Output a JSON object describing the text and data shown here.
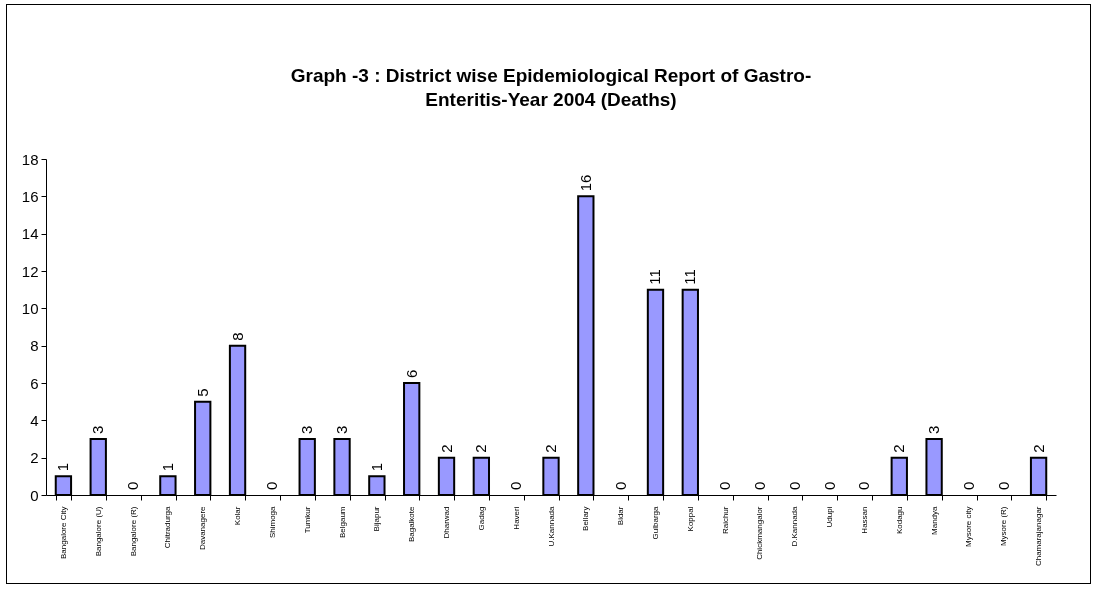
{
  "chart_data": {
    "type": "bar",
    "title": "Graph -3 : District wise  Epidemiological Report of Gastro-Enteritis-Year 2004 (Deaths)",
    "categories": [
      "Bangalore City",
      "Bangalore (U)",
      "Bangalore (R)",
      "Chitradurga",
      "Davanagere",
      "Kolar",
      "Shimoga",
      "Tumkur",
      "Belgaum",
      "Bijapur",
      "Bagalkote",
      "Dharwad",
      "Gadag",
      "Haveri",
      "U.Kannada",
      "Bellary",
      "Bidar",
      "Gulbarga",
      "Koppal",
      "Raichur",
      "Chickmangalor",
      "D.Kannada",
      "Udupi",
      "Hassan",
      "Kodagu",
      "Mandya",
      "Mysore city",
      "Mysore (R)",
      "Chamarajanagar"
    ],
    "values": [
      1,
      3,
      0,
      1,
      5,
      8,
      0,
      3,
      3,
      1,
      6,
      2,
      2,
      0,
      2,
      16,
      0,
      11,
      11,
      0,
      0,
      0,
      0,
      0,
      2,
      3,
      0,
      0,
      2
    ],
    "color": "#9999ff",
    "ylim": [
      0,
      18
    ],
    "yticks": [
      0,
      2,
      4,
      6,
      8,
      10,
      12,
      14,
      16,
      18
    ],
    "data_labels": true,
    "grid": false
  }
}
